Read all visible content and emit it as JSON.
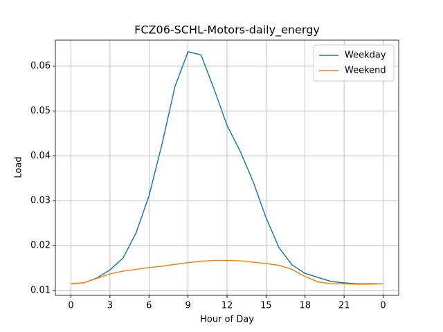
{
  "chart_data": {
    "type": "line",
    "title": "FCZ06-SCHL-Motors-daily_energy",
    "x_label": "Hour of Day",
    "y_label": "Load",
    "x": [
      0,
      1,
      2,
      3,
      4,
      5,
      6,
      7,
      8,
      9,
      10,
      11,
      12,
      13,
      14,
      15,
      16,
      17,
      18,
      19,
      20,
      21,
      22,
      23,
      24
    ],
    "series": [
      {
        "name": "Weekday",
        "color": "#1f77b4",
        "values": [
          0.0115,
          0.0117,
          0.0128,
          0.0146,
          0.0172,
          0.0228,
          0.0311,
          0.0426,
          0.0555,
          0.0632,
          0.0625,
          0.0549,
          0.0468,
          0.0411,
          0.0343,
          0.0262,
          0.0195,
          0.0157,
          0.0138,
          0.0129,
          0.012,
          0.0117,
          0.0115,
          0.0115,
          0.0115
        ]
      },
      {
        "name": "Weekend",
        "color": "#ff7f0e",
        "values": [
          0.0115,
          0.0117,
          0.0127,
          0.0137,
          0.0143,
          0.0147,
          0.0151,
          0.0154,
          0.0158,
          0.0162,
          0.0165,
          0.0167,
          0.0167,
          0.0166,
          0.0163,
          0.016,
          0.0156,
          0.0147,
          0.0131,
          0.0119,
          0.0115,
          0.0115,
          0.0114,
          0.0114,
          0.0115
        ]
      }
    ],
    "xlim": [
      -1.2,
      25.2
    ],
    "xticks": [
      0,
      3,
      6,
      9,
      12,
      15,
      18,
      21,
      {
        "value": 24,
        "label": "0"
      }
    ],
    "ylim": [
      0.00891,
      0.06579
    ],
    "yticks": [
      0.01,
      0.02,
      0.03,
      0.04,
      0.05,
      0.06
    ],
    "grid": true,
    "legend": "upper right"
  }
}
